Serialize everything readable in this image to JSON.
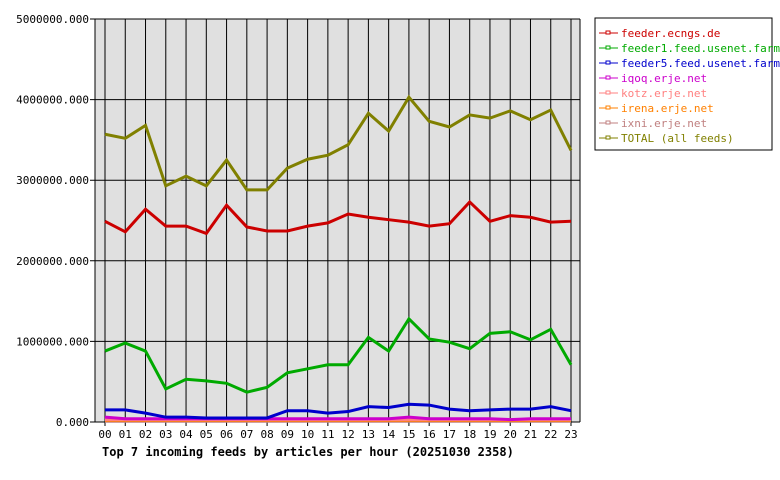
{
  "chart_data": {
    "type": "line",
    "title": "Top 7 incoming feeds by articles per hour (20251030 2358)",
    "x": [
      "00",
      "01",
      "02",
      "03",
      "04",
      "05",
      "06",
      "07",
      "08",
      "09",
      "10",
      "11",
      "12",
      "13",
      "14",
      "15",
      "16",
      "17",
      "18",
      "19",
      "20",
      "21",
      "22",
      "23"
    ],
    "ylim": [
      0,
      5000000
    ],
    "yticks": [
      "0.000",
      "1000000.000",
      "2000000.000",
      "3000000.000",
      "4000000.000",
      "5000000.000"
    ],
    "grid": true,
    "legend_position": "right",
    "background": "#e0e0e0",
    "series": [
      {
        "name": "feeder.ecngs.de",
        "color": "#cc0000",
        "values": [
          2490000,
          2360000,
          2640000,
          2430000,
          2430000,
          2340000,
          2690000,
          2420000,
          2370000,
          2370000,
          2430000,
          2470000,
          2580000,
          2540000,
          2510000,
          2480000,
          2430000,
          2460000,
          2730000,
          2490000,
          2560000,
          2540000,
          2480000,
          2490000
        ]
      },
      {
        "name": "feeder1.feed.usenet.farm",
        "color": "#00aa00",
        "values": [
          880000,
          980000,
          880000,
          410000,
          530000,
          510000,
          480000,
          370000,
          430000,
          610000,
          660000,
          710000,
          710000,
          1050000,
          880000,
          1280000,
          1030000,
          990000,
          910000,
          1100000,
          1120000,
          1020000,
          1150000,
          710000
        ]
      },
      {
        "name": "feeder5.feed.usenet.farm",
        "color": "#0000cc",
        "values": [
          150000,
          150000,
          110000,
          60000,
          60000,
          50000,
          50000,
          50000,
          50000,
          140000,
          140000,
          110000,
          130000,
          190000,
          180000,
          220000,
          210000,
          160000,
          140000,
          150000,
          160000,
          160000,
          190000,
          140000
        ]
      },
      {
        "name": "iqoq.erje.net",
        "color": "#cc00cc",
        "values": [
          60000,
          40000,
          40000,
          40000,
          40000,
          40000,
          40000,
          40000,
          40000,
          40000,
          40000,
          40000,
          40000,
          40000,
          40000,
          60000,
          40000,
          40000,
          40000,
          40000,
          30000,
          40000,
          40000,
          40000
        ]
      },
      {
        "name": "kotz.erje.net",
        "color": "#ff8080",
        "values": [
          30000,
          30000,
          30000,
          30000,
          30000,
          30000,
          30000,
          30000,
          30000,
          30000,
          30000,
          30000,
          30000,
          30000,
          30000,
          30000,
          30000,
          30000,
          30000,
          30000,
          30000,
          30000,
          30000,
          30000
        ]
      },
      {
        "name": "irena.erje.net",
        "color": "#ff8000",
        "values": [
          20000,
          20000,
          20000,
          20000,
          20000,
          20000,
          20000,
          20000,
          20000,
          20000,
          20000,
          20000,
          20000,
          20000,
          20000,
          20000,
          20000,
          20000,
          20000,
          20000,
          20000,
          20000,
          20000,
          20000
        ]
      },
      {
        "name": "ixni.erje.net",
        "color": "#c08080",
        "values": [
          10000,
          10000,
          10000,
          10000,
          10000,
          10000,
          10000,
          10000,
          10000,
          10000,
          10000,
          10000,
          10000,
          10000,
          10000,
          10000,
          10000,
          10000,
          10000,
          10000,
          10000,
          10000,
          10000,
          10000
        ]
      },
      {
        "name": "TOTAL (all feeds)",
        "color": "#808000",
        "values": [
          3570000,
          3520000,
          3680000,
          2930000,
          3050000,
          2930000,
          3250000,
          2880000,
          2880000,
          3150000,
          3260000,
          3310000,
          3440000,
          3830000,
          3610000,
          4030000,
          3730000,
          3660000,
          3810000,
          3770000,
          3860000,
          3750000,
          3870000,
          3370000
        ]
      }
    ]
  }
}
